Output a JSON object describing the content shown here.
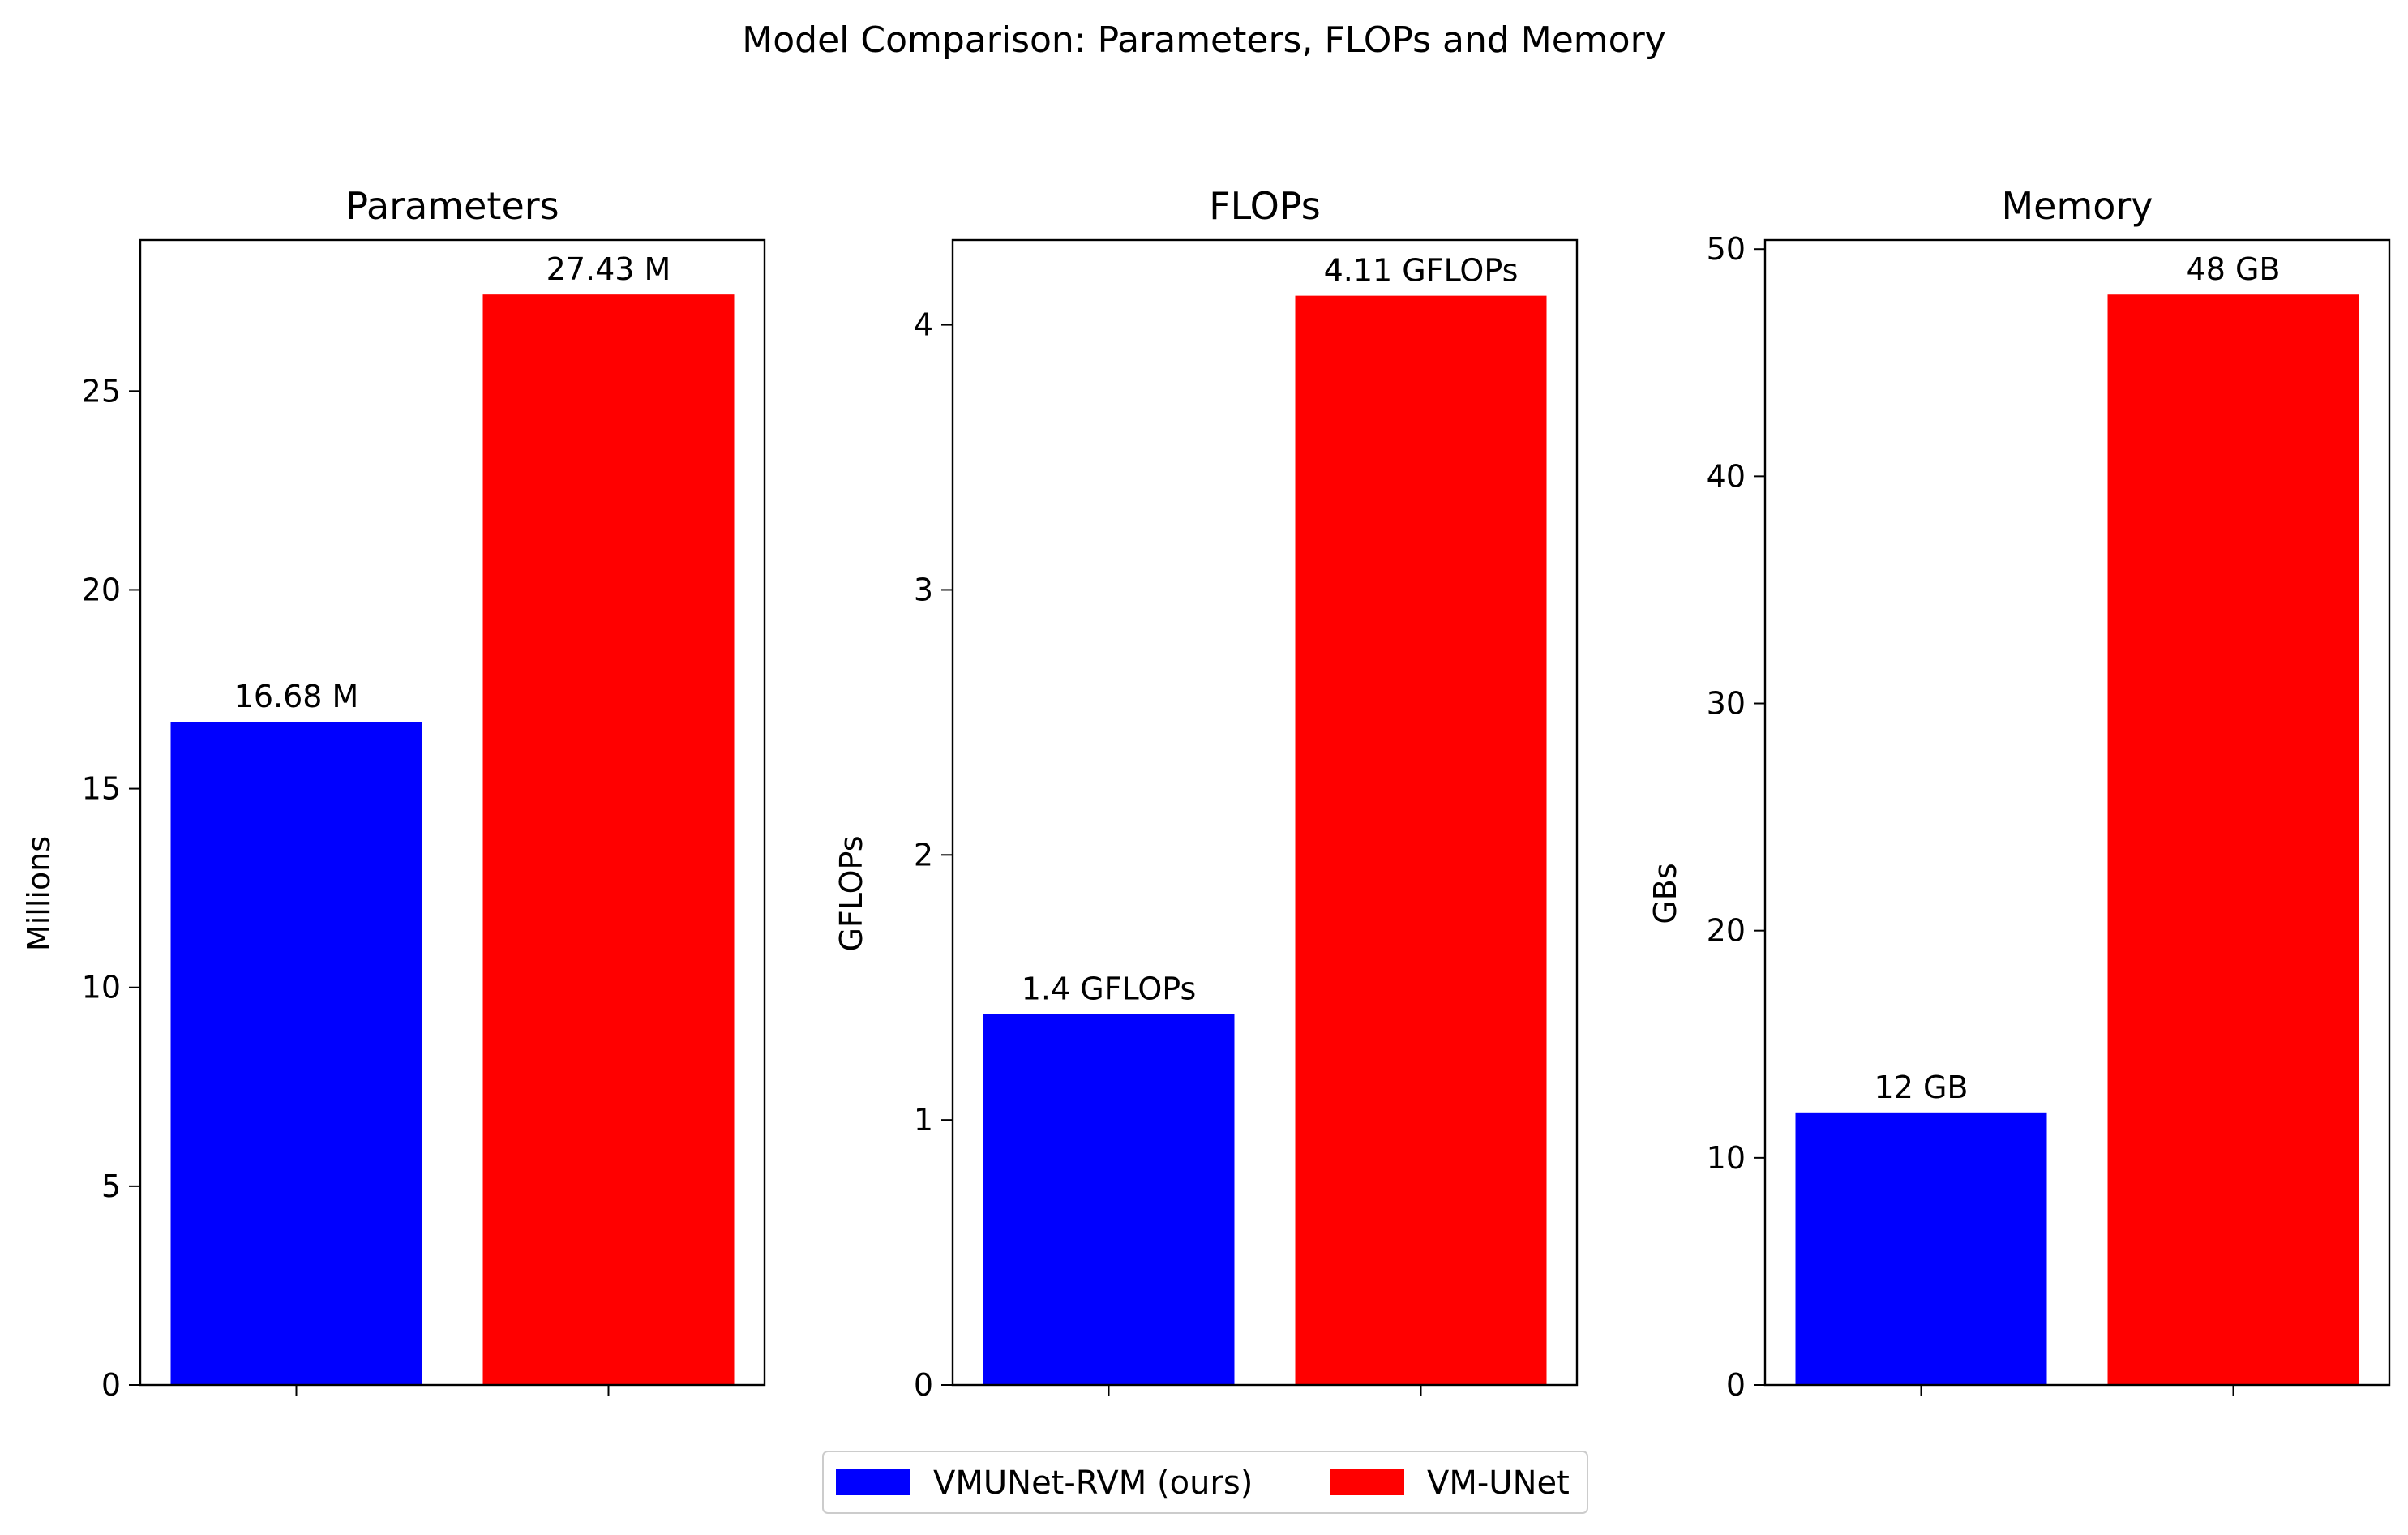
{
  "chart_data": {
    "type": "bar",
    "title": "Model Comparison: Parameters, FLOPs and Memory",
    "legend": {
      "placement": "bottom-center",
      "entries": [
        {
          "name": "VMUNet-RVM (ours)",
          "color": "#0000ff"
        },
        {
          "name": "VM-UNet",
          "color": "#ff0000"
        }
      ]
    },
    "panels": [
      {
        "title": "Parameters",
        "ylabel": "Millions",
        "ylim": [
          0,
          28.8
        ],
        "yticks": [
          0,
          5,
          10,
          15,
          20,
          25
        ],
        "values": [
          16.68,
          27.43
        ],
        "labels": [
          "16.68 M",
          "27.43 M"
        ],
        "colors": [
          "#0000ff",
          "#ff0000"
        ]
      },
      {
        "title": "FLOPs",
        "ylabel": "GFLOPs",
        "ylim": [
          0,
          4.32
        ],
        "yticks": [
          0,
          1,
          2,
          3,
          4
        ],
        "values": [
          1.4,
          4.11
        ],
        "labels": [
          "1.4 GFLOPs",
          "4.11 GFLOPs"
        ],
        "colors": [
          "#0000ff",
          "#ff0000"
        ]
      },
      {
        "title": "Memory",
        "ylabel": "GBs",
        "ylim": [
          0,
          50.4
        ],
        "yticks": [
          0,
          10,
          20,
          30,
          40,
          50
        ],
        "values": [
          12,
          48
        ],
        "labels": [
          "12 GB",
          "48 GB"
        ],
        "colors": [
          "#0000ff",
          "#ff0000"
        ]
      }
    ]
  }
}
